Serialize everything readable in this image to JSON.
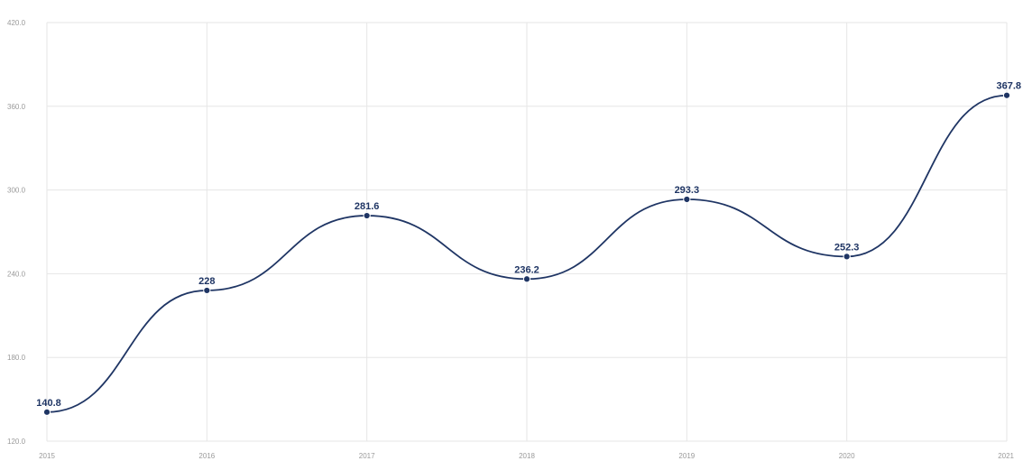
{
  "colors": {
    "series": "#1f3564",
    "grid": "#e6e6e6",
    "tick_text": "#9a9a9a",
    "background": "#ffffff"
  },
  "chart_data": {
    "type": "line",
    "title": "",
    "xlabel": "",
    "ylabel": "",
    "categories": [
      "2015",
      "2016",
      "2017",
      "2018",
      "2019",
      "2020",
      "2021"
    ],
    "series": [
      {
        "values": [
          140.8,
          228,
          281.6,
          236.2,
          293.3,
          252.3,
          367.8
        ]
      }
    ],
    "data_labels": [
      "140.8",
      "228",
      "281.6",
      "236.2",
      "293.3",
      "252.3",
      "367.8"
    ],
    "ylim": [
      120,
      420
    ],
    "y_ticks": [
      120,
      180,
      240,
      300,
      360,
      420
    ],
    "y_tick_labels": [
      "120.0",
      "180.0",
      "240.0",
      "300.0",
      "360.0",
      "420.0"
    ],
    "grid": true,
    "smooth": true,
    "legend": "none"
  }
}
